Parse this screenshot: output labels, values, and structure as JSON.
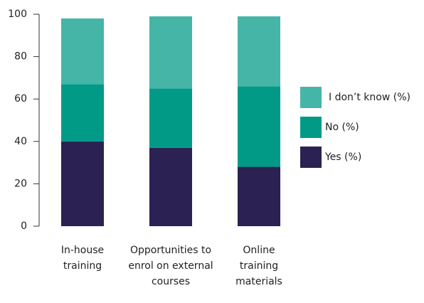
{
  "chart_data": {
    "type": "stacked_bar",
    "categories": [
      "In-house training",
      "Opportunities to enrol on external courses",
      "Online training materials"
    ],
    "series": [
      {
        "name": "Yes (%)",
        "color": "#2b2152",
        "values": [
          40,
          37,
          28
        ]
      },
      {
        "name": "No (%)",
        "color": "#009a87",
        "values": [
          27,
          28,
          38
        ]
      },
      {
        "name": "I don’t know (%)",
        "color": "#45b5a7",
        "values": [
          31,
          34,
          33
        ]
      }
    ],
    "ylim": [
      0,
      100
    ],
    "yticks": [
      0,
      20,
      40,
      60,
      80,
      100
    ],
    "grid": false,
    "legend": "right"
  }
}
